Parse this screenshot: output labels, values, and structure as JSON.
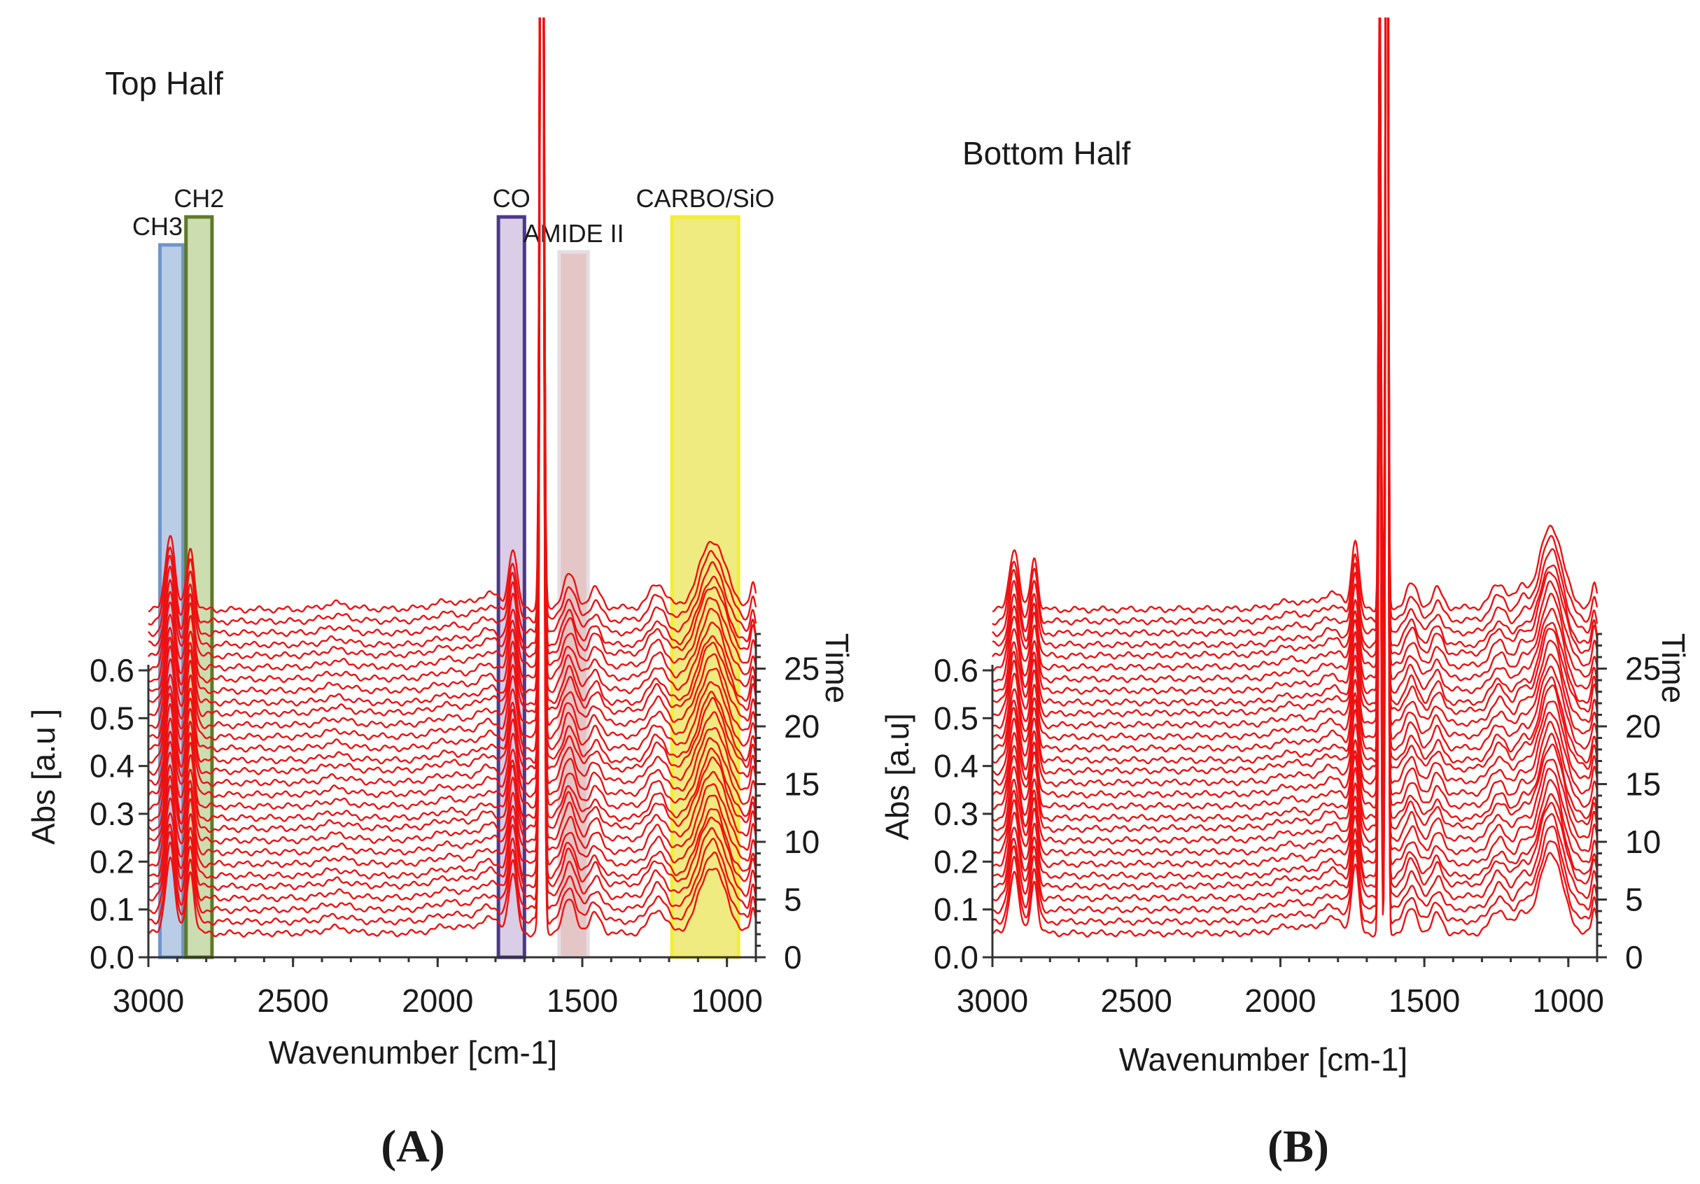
{
  "chart_data": [
    {
      "id": "A",
      "type": "line",
      "title": "Top Half",
      "caption": "(A)",
      "xlabel": "Wavenumber [cm-1]",
      "ylabel": "Abs [a.u ]",
      "zlabel": "Time",
      "xlim": [
        3000,
        900
      ],
      "ylim": [
        0.0,
        0.6
      ],
      "zlim": [
        0,
        28
      ],
      "x_ticks": [
        "3000",
        "2500",
        "2000",
        "1500",
        "1000"
      ],
      "y_ticks": [
        "0.0",
        "0.1",
        "0.2",
        "0.3",
        "0.4",
        "0.5",
        "0.6"
      ],
      "z_ticks": [
        "0",
        "5",
        "10",
        "15",
        "20",
        "25"
      ],
      "series_color": "#ee1111",
      "series_count": 29,
      "series_times": [
        0,
        1,
        2,
        3,
        4,
        5,
        6,
        7,
        8,
        9,
        10,
        11,
        12,
        13,
        14,
        15,
        16,
        17,
        18,
        19,
        20,
        21,
        22,
        23,
        24,
        25,
        26,
        27,
        28
      ],
      "baseline_abs": 0.05,
      "peaks": [
        {
          "center": 2925,
          "width": 16,
          "height": 0.16
        },
        {
          "center": 2855,
          "width": 13,
          "height": 0.13
        },
        {
          "center": 2350,
          "width": 45,
          "height": 0.012
        },
        {
          "center": 1960,
          "width": 55,
          "height": 0.015
        },
        {
          "center": 1820,
          "width": 40,
          "height": 0.03
        },
        {
          "center": 1740,
          "width": 14,
          "height": 0.12
        },
        {
          "center": 1640,
          "width": 6,
          "height": 3.0
        },
        {
          "center": 1545,
          "width": 22,
          "height": 0.07
        },
        {
          "center": 1455,
          "width": 20,
          "height": 0.04
        },
        {
          "center": 1240,
          "width": 28,
          "height": 0.05
        },
        {
          "center": 1050,
          "width": 45,
          "height": 0.14
        },
        {
          "center": 910,
          "width": 8,
          "height": 0.05
        }
      ],
      "regions": [
        {
          "label": "CH3",
          "from": 2960,
          "to": 2880,
          "color": "#9db8dd",
          "border": "#6f94c8"
        },
        {
          "label": "CH2",
          "from": 2870,
          "to": 2780,
          "color": "#b7cf8f",
          "border": "#5e7a2a"
        },
        {
          "label": "CO",
          "from": 1790,
          "to": 1700,
          "color": "#cbb8dc",
          "border": "#4a3a8a"
        },
        {
          "label": "AMIDE II",
          "from": 1580,
          "to": 1480,
          "color": "#d8aeae",
          "border": "#e4dde4"
        },
        {
          "label": "CARBO/SiO",
          "from": 1190,
          "to": 960,
          "color": "#e9e24a",
          "border": "#f2ee33"
        }
      ]
    },
    {
      "id": "B",
      "type": "line",
      "title": "Bottom Half",
      "caption": "(B)",
      "xlabel": "Wavenumber [cm-1]",
      "ylabel": "Abs [a.u]",
      "zlabel": "Time",
      "xlim": [
        3000,
        900
      ],
      "ylim": [
        0.0,
        0.6
      ],
      "zlim": [
        0,
        28
      ],
      "x_ticks": [
        "3000",
        "2500",
        "2000",
        "1500",
        "1000"
      ],
      "y_ticks": [
        "0.0",
        "0.1",
        "0.2",
        "0.3",
        "0.4",
        "0.5",
        "0.6"
      ],
      "z_ticks": [
        "0",
        "5",
        "10",
        "15",
        "20",
        "25"
      ],
      "series_color": "#ee1111",
      "series_count": 29,
      "series_times": [
        0,
        1,
        2,
        3,
        4,
        5,
        6,
        7,
        8,
        9,
        10,
        11,
        12,
        13,
        14,
        15,
        16,
        17,
        18,
        19,
        20,
        21,
        22,
        23,
        24,
        25,
        26,
        27,
        28
      ],
      "baseline_abs": 0.05,
      "peaks": [
        {
          "center": 2925,
          "width": 16,
          "height": 0.13
        },
        {
          "center": 2855,
          "width": 12,
          "height": 0.11
        },
        {
          "center": 1960,
          "width": 55,
          "height": 0.015
        },
        {
          "center": 1820,
          "width": 40,
          "height": 0.03
        },
        {
          "center": 1740,
          "width": 12,
          "height": 0.14
        },
        {
          "center": 1655,
          "width": 4,
          "height": 1.4
        },
        {
          "center": 1630,
          "width": 4,
          "height": 3.0
        },
        {
          "center": 1545,
          "width": 20,
          "height": 0.05
        },
        {
          "center": 1455,
          "width": 18,
          "height": 0.04
        },
        {
          "center": 1240,
          "width": 28,
          "height": 0.05
        },
        {
          "center": 1160,
          "width": 20,
          "height": 0.04
        },
        {
          "center": 1060,
          "width": 40,
          "height": 0.17
        },
        {
          "center": 910,
          "width": 8,
          "height": 0.05
        }
      ],
      "regions": []
    }
  ]
}
